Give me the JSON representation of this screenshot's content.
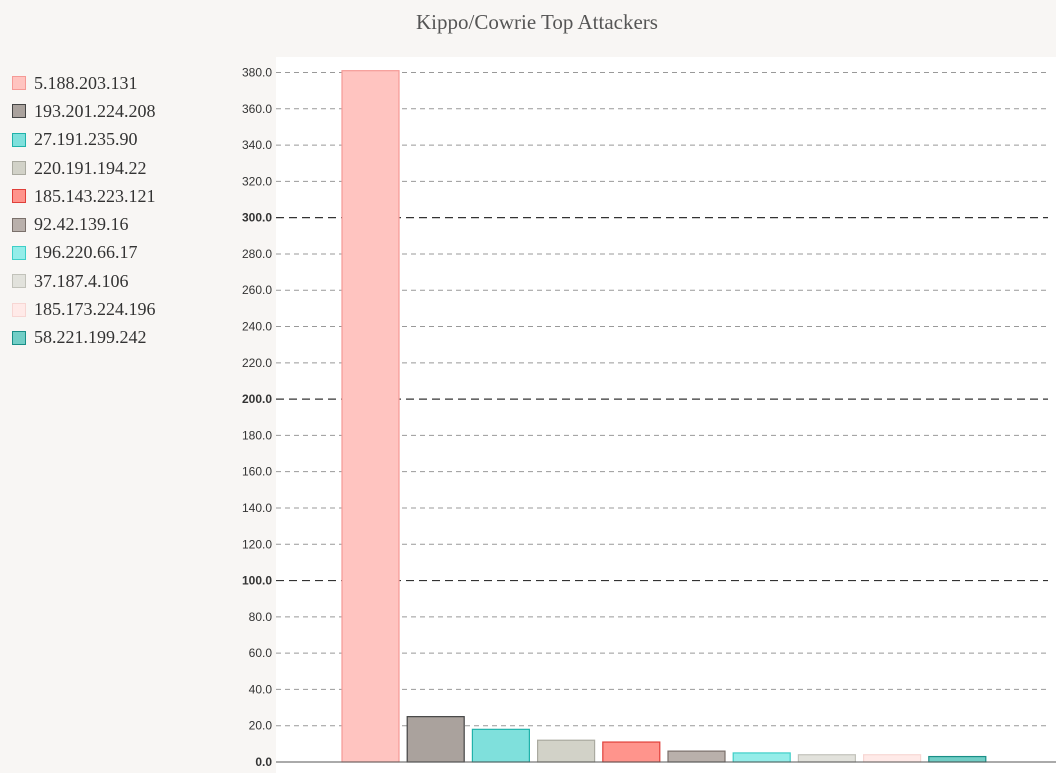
{
  "chart_data": {
    "type": "bar",
    "title": "Kippo/Cowrie Top Attackers",
    "categories": [
      "5.188.203.131",
      "193.201.224.208",
      "27.191.235.90",
      "220.191.194.22",
      "185.143.223.121",
      "92.42.139.16",
      "196.220.66.17",
      "37.187.4.106",
      "185.173.224.196",
      "58.221.199.242"
    ],
    "values": [
      381,
      25,
      18,
      12,
      11,
      6,
      5,
      4,
      4,
      3
    ],
    "colors": [
      {
        "fill": "#ffc4c0",
        "stroke": "#f59a96"
      },
      {
        "fill": "#aaa29d",
        "stroke": "#444444"
      },
      {
        "fill": "#7fe0dc",
        "stroke": "#20b2aa"
      },
      {
        "fill": "#d2d2c8",
        "stroke": "#aaaaa0"
      },
      {
        "fill": "#ff948c",
        "stroke": "#e0403a"
      },
      {
        "fill": "#b9b0ab",
        "stroke": "#7a706b"
      },
      {
        "fill": "#94ede9",
        "stroke": "#3fcfc8"
      },
      {
        "fill": "#e2e2dc",
        "stroke": "#c2c2ba"
      },
      {
        "fill": "#ffeae8",
        "stroke": "#f7d6d3"
      },
      {
        "fill": "#72cec6",
        "stroke": "#1a8f87"
      }
    ],
    "ylim": [
      0,
      380
    ],
    "yticks": [
      0,
      20,
      40,
      60,
      80,
      100,
      120,
      140,
      160,
      180,
      200,
      220,
      240,
      260,
      280,
      300,
      320,
      340,
      360,
      380
    ],
    "ytick_labels": [
      "0.0",
      "20.0",
      "40.0",
      "60.0",
      "80.0",
      "100.0",
      "120.0",
      "140.0",
      "160.0",
      "180.0",
      "200.0",
      "220.0",
      "240.0",
      "260.0",
      "280.0",
      "300.0",
      "320.0",
      "340.0",
      "360.0",
      "380.0"
    ],
    "major_ticks": [
      0,
      100,
      200,
      300
    ],
    "grid": true,
    "grid_style": "dashed",
    "legend_position": "left",
    "xlabel": "",
    "ylabel": ""
  }
}
